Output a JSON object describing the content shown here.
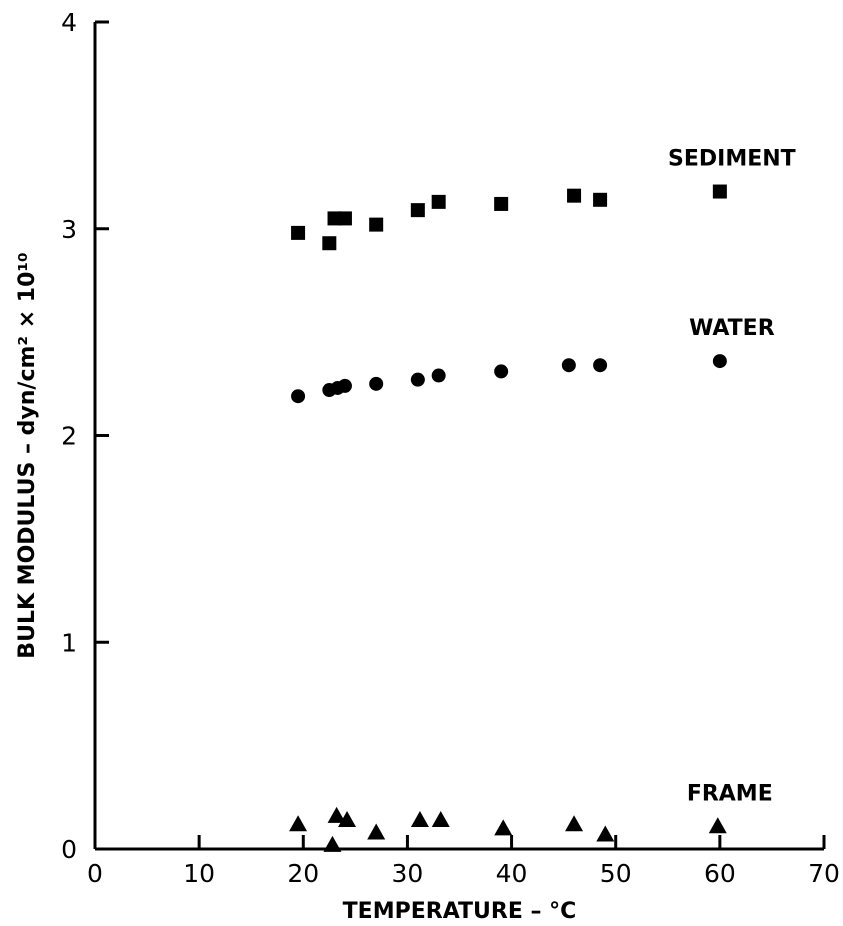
{
  "chart_data": {
    "type": "scatter",
    "xlabel": "TEMPERATURE – °C",
    "ylabel": "BULK MODULUS – dyn/cm² × 10¹⁰",
    "xlim": [
      0,
      70
    ],
    "ylim": [
      0,
      4
    ],
    "xticks": [
      "0",
      "10",
      "20",
      "30",
      "40",
      "50",
      "60",
      "70"
    ],
    "yticks": [
      "0",
      "1",
      "2",
      "3",
      "4"
    ],
    "grid": false,
    "series": [
      {
        "name": "SEDIMENT",
        "marker": "square",
        "points": [
          [
            19.5,
            2.98
          ],
          [
            22.5,
            2.93
          ],
          [
            23.0,
            3.05
          ],
          [
            24.0,
            3.05
          ],
          [
            27.0,
            3.02
          ],
          [
            31.0,
            3.09
          ],
          [
            33.0,
            3.13
          ],
          [
            39.0,
            3.12
          ],
          [
            46.0,
            3.16
          ],
          [
            48.5,
            3.14
          ],
          [
            60.0,
            3.18
          ]
        ]
      },
      {
        "name": "WATER",
        "marker": "circle",
        "points": [
          [
            19.5,
            2.19
          ],
          [
            22.5,
            2.22
          ],
          [
            23.3,
            2.23
          ],
          [
            24.0,
            2.24
          ],
          [
            27.0,
            2.25
          ],
          [
            31.0,
            2.27
          ],
          [
            33.0,
            2.29
          ],
          [
            39.0,
            2.31
          ],
          [
            45.5,
            2.34
          ],
          [
            48.5,
            2.34
          ],
          [
            60.0,
            2.36
          ]
        ]
      },
      {
        "name": "FRAME",
        "marker": "triangle",
        "points": [
          [
            19.5,
            0.12
          ],
          [
            22.8,
            0.02
          ],
          [
            23.2,
            0.16
          ],
          [
            24.2,
            0.14
          ],
          [
            27.0,
            0.08
          ],
          [
            31.2,
            0.14
          ],
          [
            33.2,
            0.14
          ],
          [
            39.2,
            0.1
          ],
          [
            46.0,
            0.12
          ],
          [
            49.0,
            0.07
          ],
          [
            59.8,
            0.11
          ]
        ]
      }
    ]
  }
}
